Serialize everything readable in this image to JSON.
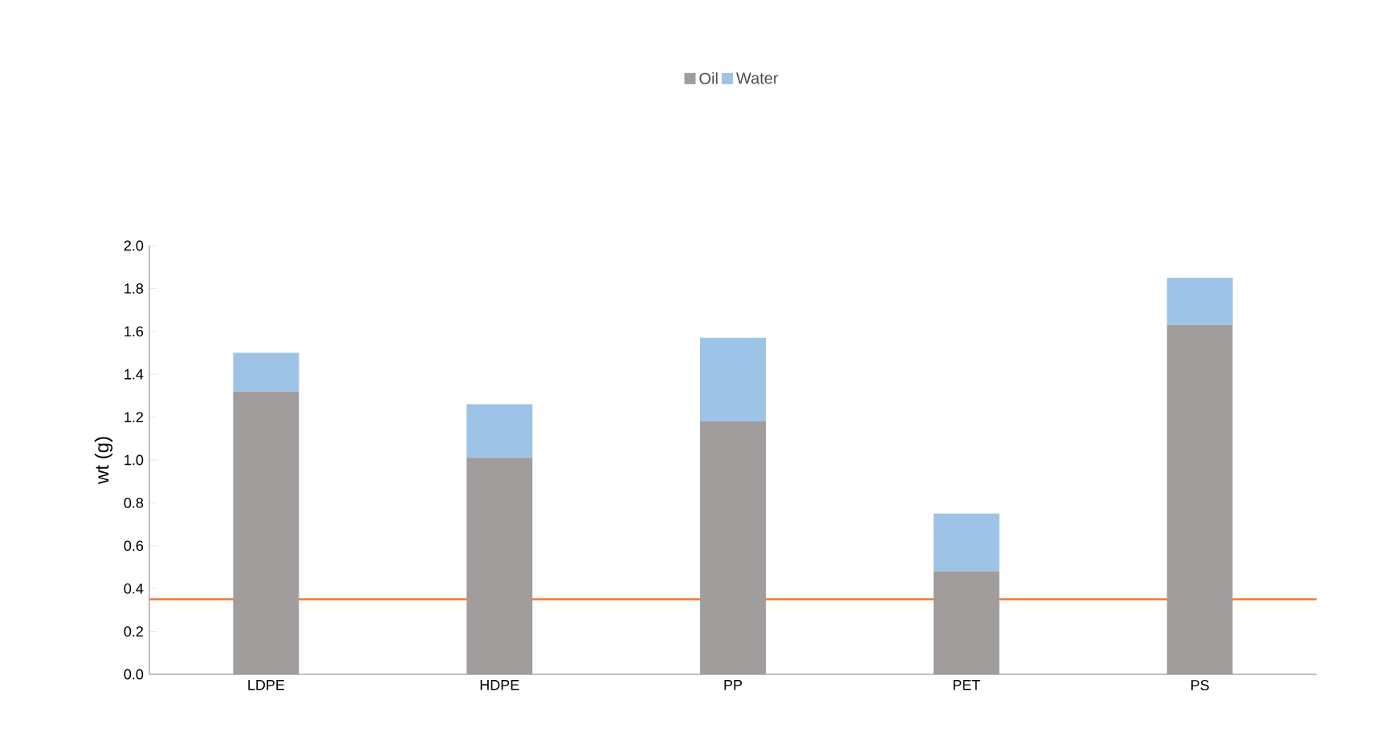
{
  "chart_data": {
    "type": "bar",
    "stacked": true,
    "ylabel": "wt (g)",
    "categories": [
      "LDPE",
      "HDPE",
      "PP",
      "PET",
      "PS"
    ],
    "series": [
      {
        "name": "Oil",
        "color": "#a09d9c",
        "values": [
          1.32,
          1.01,
          1.18,
          0.48,
          1.63
        ]
      },
      {
        "name": "Water",
        "color": "#9dc3e6",
        "values": [
          0.18,
          0.25,
          0.39,
          0.27,
          0.22
        ]
      }
    ],
    "ylim": [
      0,
      2.0
    ],
    "yticks": [
      {
        "value": 0,
        "label": "0.0"
      },
      0.2,
      0.4,
      0.6,
      0.8,
      {
        "value": 1.0,
        "label": "1.0"
      },
      1.2,
      1.4,
      1.6,
      1.8,
      {
        "value": 2.0,
        "label": "2.0"
      }
    ],
    "ref_lines": [
      {
        "axis": "y",
        "value": 0.35,
        "color": "#ed7d31"
      }
    ],
    "legend": "top",
    "grid": false
  }
}
